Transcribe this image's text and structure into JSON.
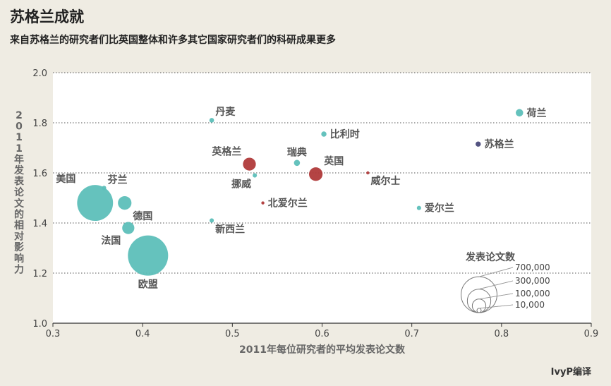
{
  "header": {
    "title": "苏格兰成就",
    "subtitle": "来自苏格兰的研究者们比英国整体和许多其它国家研究者们的科研成果更多",
    "credit": "IvyP编译"
  },
  "colors": {
    "teal": "#5dbfb9",
    "red": "#b03a3a",
    "purple": "#4a4a7a",
    "plot_bg": "#ffffff"
  },
  "chart_data": {
    "type": "scatter",
    "title": "苏格兰成就",
    "xlabel": "2011年每位研究者的平均发表论文数",
    "ylabel": "2011年发表论文的相对影响力",
    "xlim": [
      0.3,
      0.9
    ],
    "ylim": [
      1.0,
      2.0
    ],
    "xticks": [
      0.3,
      0.4,
      0.5,
      0.6,
      0.7,
      0.8,
      0.9
    ],
    "xtick_labels": [
      "0.3",
      "0.4",
      "0.5",
      "0.6",
      "0.7",
      "0.8",
      "0.9"
    ],
    "yticks": [
      1.0,
      1.2,
      1.4,
      1.6,
      1.8,
      2.0
    ],
    "ytick_labels": [
      "1.0",
      "1.2",
      "1.4",
      "1.6",
      "1.8",
      "2.0"
    ],
    "grid": "horizontal dotted",
    "size_legend": {
      "title": "发表论文数",
      "placement": "bottom-right",
      "values": [
        700000,
        300000,
        100000,
        10000
      ],
      "labels": [
        "700,000",
        "300,000",
        "100,000",
        "10,000"
      ]
    },
    "points": [
      {
        "label": "美国",
        "x": 0.347,
        "y": 1.48,
        "size": 700000,
        "color": "teal",
        "label_pos": "ul"
      },
      {
        "label": "芬兰",
        "x": 0.357,
        "y": 1.54,
        "size": 10000,
        "color": "teal",
        "label_pos": "ur"
      },
      {
        "label": "德国",
        "x": 0.38,
        "y": 1.48,
        "size": 100000,
        "color": "teal",
        "label_pos": "br"
      },
      {
        "label": "法国",
        "x": 0.384,
        "y": 1.38,
        "size": 80000,
        "color": "teal",
        "label_pos": "bl"
      },
      {
        "label": "欧盟",
        "x": 0.406,
        "y": 1.27,
        "size": 880000,
        "color": "teal",
        "label_pos": "b"
      },
      {
        "label": "新西兰",
        "x": 0.477,
        "y": 1.41,
        "size": 10000,
        "color": "teal",
        "label_pos": "br"
      },
      {
        "label": "丹麦",
        "x": 0.477,
        "y": 1.81,
        "size": 12000,
        "color": "teal",
        "label_pos": "ur"
      },
      {
        "label": "英格兰",
        "x": 0.519,
        "y": 1.635,
        "size": 90000,
        "color": "red",
        "label_pos": "ul"
      },
      {
        "label": "挪威",
        "x": 0.525,
        "y": 1.59,
        "size": 10000,
        "color": "teal",
        "label_pos": "bl"
      },
      {
        "label": "北爱尔兰",
        "x": 0.534,
        "y": 1.48,
        "size": 3000,
        "color": "red",
        "label_pos": "r"
      },
      {
        "label": "瑞典",
        "x": 0.572,
        "y": 1.64,
        "size": 20000,
        "color": "teal",
        "label_pos": "u"
      },
      {
        "label": "英国",
        "x": 0.593,
        "y": 1.595,
        "size": 100000,
        "color": "red",
        "label_pos": "ur"
      },
      {
        "label": "比利时",
        "x": 0.602,
        "y": 1.755,
        "size": 15000,
        "color": "teal",
        "label_pos": "r"
      },
      {
        "label": "威尔士",
        "x": 0.651,
        "y": 1.6,
        "size": 2500,
        "color": "red",
        "label_pos": "br"
      },
      {
        "label": "爱尔兰",
        "x": 0.708,
        "y": 1.46,
        "size": 10000,
        "color": "teal",
        "label_pos": "r"
      },
      {
        "label": "苏格兰",
        "x": 0.774,
        "y": 1.715,
        "size": 15000,
        "color": "purple",
        "label_pos": "r"
      },
      {
        "label": "荷兰",
        "x": 0.82,
        "y": 1.84,
        "size": 30000,
        "color": "teal",
        "label_pos": "r"
      }
    ]
  }
}
